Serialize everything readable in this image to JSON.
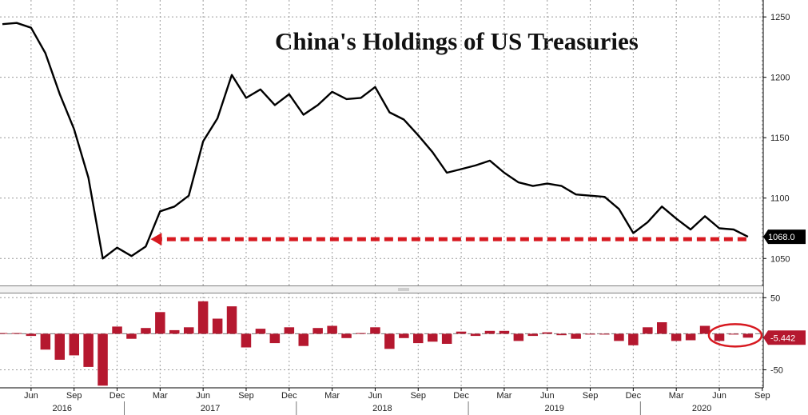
{
  "chart_data": [
    {
      "type": "line",
      "title": "China's Holdings of US Treasuries",
      "x_start": "2016-04",
      "x_labels": [
        "Jun",
        "Sep",
        "Dec",
        "Mar",
        "Jun",
        "Sep",
        "Dec",
        "Mar",
        "Jun",
        "Sep",
        "Dec",
        "Mar",
        "Jun",
        "Sep",
        "Dec",
        "Mar",
        "Jun",
        "Sep"
      ],
      "year_labels": [
        "2016",
        "2017",
        "2018",
        "2019",
        "2020"
      ],
      "y_ticks": [
        1050,
        1100,
        1150,
        1200,
        1250
      ],
      "ylim": [
        1027,
        1264
      ],
      "grid": true,
      "series": [
        {
          "values": [
            1244,
            1245,
            1241,
            1220,
            1186,
            1157,
            1117,
            1050,
            1059,
            1052,
            1060,
            1089,
            1093,
            1102,
            1147,
            1166,
            1202,
            1183,
            1190,
            1177,
            1186,
            1169,
            1177,
            1188,
            1182,
            1183,
            1192,
            1171,
            1165,
            1152,
            1138,
            1121,
            1124,
            1127,
            1131,
            1121,
            1113,
            1110,
            1112,
            1110,
            1103,
            1102,
            1101,
            1091,
            1071,
            1080,
            1093,
            1083,
            1074,
            1085,
            1075,
            1074,
            1068
          ]
        }
      ],
      "last_value_label": "1068.0",
      "annotation": {
        "type": "dashed-arrow",
        "from_value": 1068,
        "direction": "left",
        "color": "#d71920"
      }
    },
    {
      "type": "bar",
      "y_ticks": [
        50,
        -50
      ],
      "y_tick_labels": [
        "50",
        "-50"
      ],
      "ylim": [
        -75,
        57
      ],
      "grid": true,
      "values": [
        1,
        1,
        -3,
        -22,
        -36,
        -30,
        -46,
        -72,
        10,
        -7,
        8,
        30,
        5,
        9,
        45,
        21,
        38,
        -19,
        7,
        -13,
        9,
        -17,
        8,
        11,
        -6,
        1,
        9,
        -21,
        -6,
        -13,
        -11,
        -14,
        3,
        -3,
        4,
        4,
        -10,
        -3,
        2,
        -2,
        -7,
        -1,
        -1,
        -10,
        -16,
        9,
        16,
        -10,
        -9,
        11,
        -10,
        -1,
        -5.442
      ],
      "color": "#b5182f",
      "last_value_label": "-5.442",
      "highlight_last": true,
      "highlight_color": "#d71920"
    }
  ]
}
